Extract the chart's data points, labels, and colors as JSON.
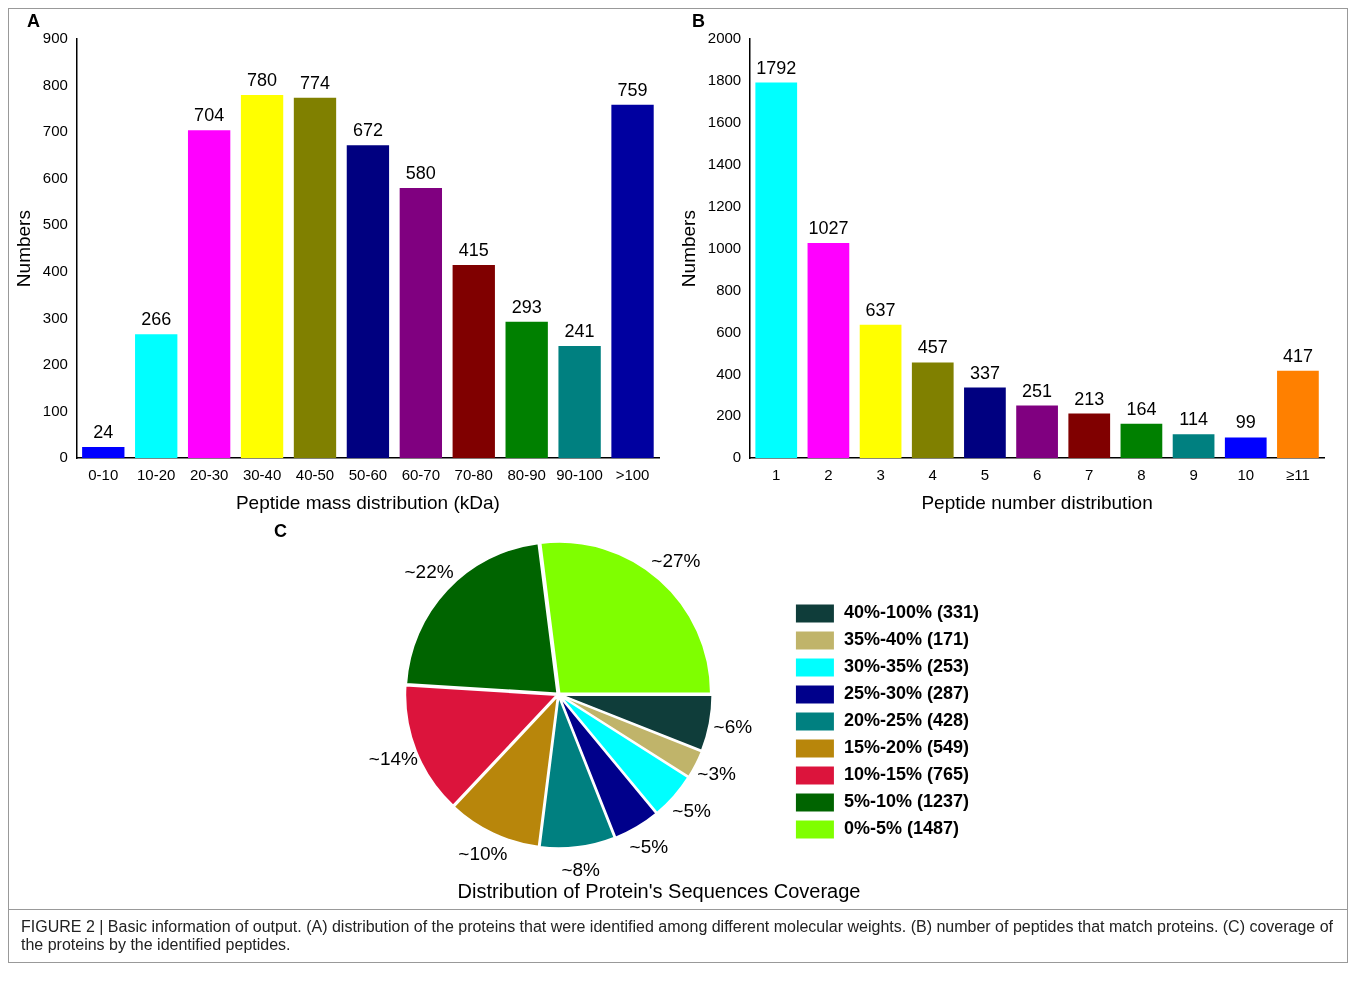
{
  "chart_data": [
    {
      "type": "bar",
      "xlabel": "Peptide mass distribution (kDa)",
      "ylabel": "Numbers",
      "annotations": [
        "A"
      ],
      "categories": [
        "0-10",
        "10-20",
        "20-30",
        "30-40",
        "40-50",
        "50-60",
        "60-70",
        "70-80",
        "80-90",
        "90-100",
        ">100"
      ],
      "values": [
        24,
        266,
        704,
        780,
        774,
        672,
        580,
        415,
        293,
        241,
        759
      ],
      "colors": [
        "#0000ff",
        "#00ffff",
        "#ff00ff",
        "#ffff00",
        "#808000",
        "#000080",
        "#800080",
        "#800000",
        "#008000",
        "#008080",
        "#0000a0"
      ],
      "ylim": [
        0,
        900
      ],
      "yticks": [
        0,
        100,
        200,
        300,
        400,
        500,
        600,
        700,
        800,
        900
      ],
      "grid": false,
      "legend": false,
      "data_labels": true
    },
    {
      "type": "bar",
      "xlabel": "Peptide number distribution",
      "ylabel": "Numbers",
      "annotations": [
        "B"
      ],
      "categories": [
        "1",
        "2",
        "3",
        "4",
        "5",
        "6",
        "7",
        "8",
        "9",
        "10",
        "≥11"
      ],
      "values": [
        1792,
        1027,
        637,
        457,
        337,
        251,
        213,
        164,
        114,
        99,
        417
      ],
      "colors": [
        "#00ffff",
        "#ff00ff",
        "#ffff00",
        "#808000",
        "#000080",
        "#800080",
        "#800000",
        "#008000",
        "#008080",
        "#0000ff",
        "#ff8000"
      ],
      "ylim": [
        0,
        2000
      ],
      "yticks": [
        0,
        200,
        400,
        600,
        800,
        1000,
        1200,
        1400,
        1600,
        1800,
        2000
      ],
      "grid": false,
      "legend": false,
      "data_labels": true
    },
    {
      "type": "pie",
      "title": "Distribution of Protein's Sequences Coverage",
      "legend": "right",
      "annotations": [
        "C",
        "FIGURE 2 | Basic information of output. (A) distribution of the proteins that were identified among different molecular weights. (B) number of peptides that match proteins. (C) coverage of the proteins by the identified peptides."
      ],
      "categories": [
        "40%-100% (331)",
        "35%-40% (171)",
        "30%-35% (253)",
        "25%-30% (287)",
        "20%-25% (428)",
        "15%-20% (549)",
        "10%-15% (765)",
        "5%-10% (1237)",
        "0%-5% (1487)"
      ],
      "values": [
        6,
        3,
        5,
        5,
        8,
        10,
        14,
        22,
        27
      ],
      "colors": [
        "#0f3d3a",
        "#c0b46a",
        "#00ffff",
        "#00008b",
        "#008080",
        "#b8860b",
        "#dc143c",
        "#006400",
        "#7fff00"
      ],
      "value_labels": [
        "~6%",
        "~3%",
        "~5%",
        "~5%",
        "~8%",
        "~10%",
        "~14%",
        "~22%",
        "~27%"
      ]
    }
  ]
}
